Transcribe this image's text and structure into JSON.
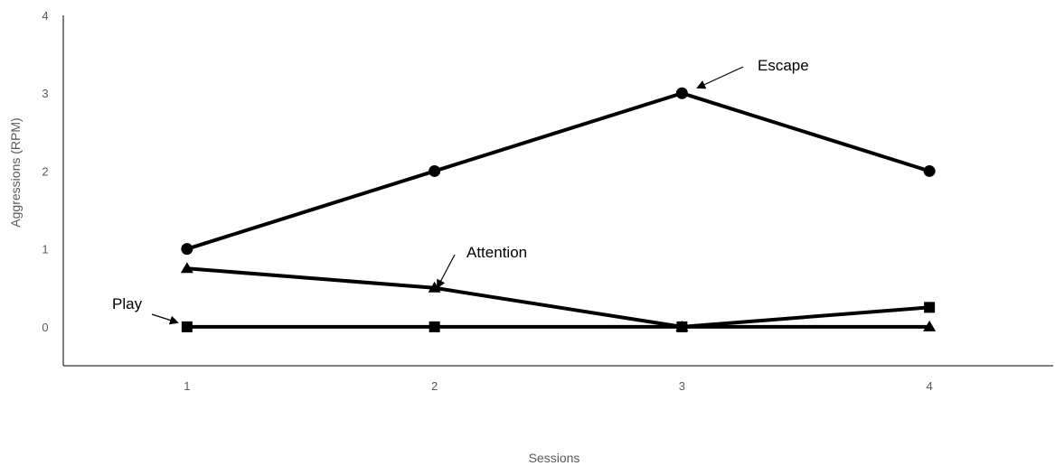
{
  "chart_data": {
    "type": "line",
    "title": "",
    "xlabel": "Sessions",
    "ylabel": "Aggressions (RPM)",
    "x": [
      1,
      2,
      3,
      4
    ],
    "xlim": [
      0.5,
      4.5
    ],
    "ylim": [
      -0.5,
      4
    ],
    "xticks": [
      "1",
      "2",
      "3",
      "4"
    ],
    "yticks": [
      "0",
      "1",
      "2",
      "3",
      "4"
    ],
    "grid": false,
    "legend": "none",
    "series": [
      {
        "name": "Escape",
        "marker": "circle",
        "color": "#000000",
        "values": [
          1,
          2,
          3,
          2
        ]
      },
      {
        "name": "Attention",
        "marker": "triangle",
        "color": "#000000",
        "values": [
          0.75,
          0.5,
          0,
          0
        ]
      },
      {
        "name": "Play",
        "marker": "square",
        "color": "#000000",
        "values": [
          0,
          0,
          0,
          0.25
        ]
      }
    ],
    "annotations": [
      {
        "label": "Escape",
        "series": "Escape",
        "point_index": 2
      },
      {
        "label": "Attention",
        "series": "Attention",
        "point_index": 1
      },
      {
        "label": "Play",
        "series": "Play",
        "point_index": 0
      }
    ]
  }
}
